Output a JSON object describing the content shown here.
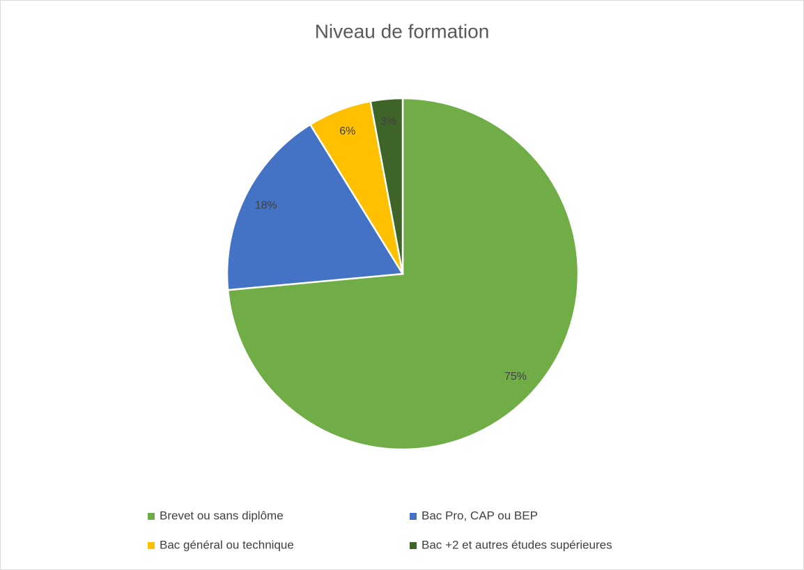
{
  "chart_data": {
    "type": "pie",
    "title": "Niveau de formation",
    "categories": [
      "Brevet ou sans diplôme",
      "Bac Pro, CAP ou BEP",
      "Bac général ou technique",
      "Bac +2 et autres études supérieures"
    ],
    "values": [
      75,
      18,
      6,
      3
    ],
    "value_labels": [
      "75%",
      "18%",
      "6%",
      "3%"
    ],
    "colors": [
      "#70ad47",
      "#4472c4",
      "#ffc000",
      "#3e6428"
    ],
    "legend": "bottom"
  }
}
